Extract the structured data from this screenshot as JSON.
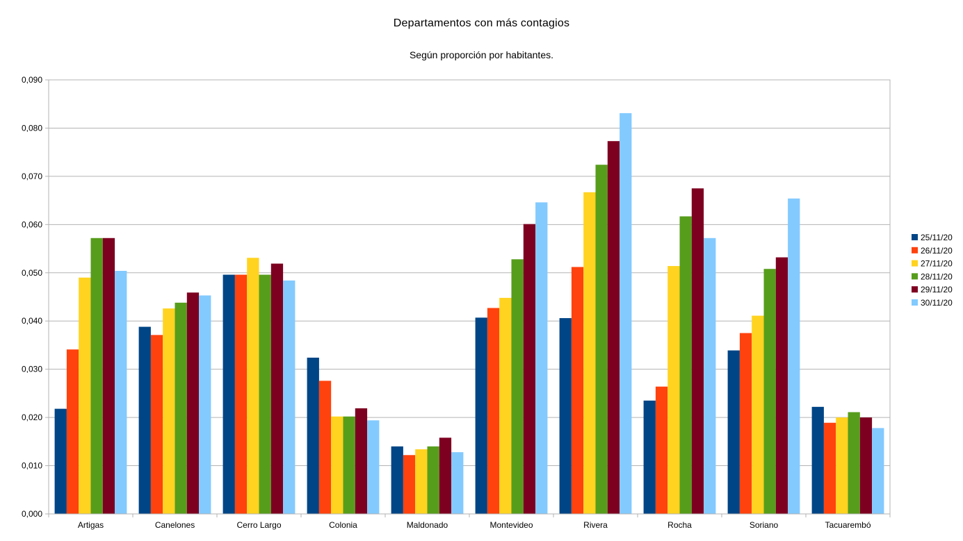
{
  "chart_data": {
    "type": "bar",
    "title": "Departamentos con más contagios",
    "subtitle": "Según proporción por habitantes.",
    "xlabel": "",
    "ylabel": "",
    "ylim": [
      0,
      0.09
    ],
    "y_ticks": [
      {
        "value": 0.0,
        "label": "0,000"
      },
      {
        "value": 0.01,
        "label": "0,010"
      },
      {
        "value": 0.02,
        "label": "0,020"
      },
      {
        "value": 0.03,
        "label": "0,030"
      },
      {
        "value": 0.04,
        "label": "0,040"
      },
      {
        "value": 0.05,
        "label": "0,050"
      },
      {
        "value": 0.06,
        "label": "0,060"
      },
      {
        "value": 0.07,
        "label": "0,070"
      },
      {
        "value": 0.08,
        "label": "0,080"
      },
      {
        "value": 0.09,
        "label": "0,090"
      }
    ],
    "grid": true,
    "legend_position": "right",
    "categories": [
      "Artigas",
      "Canelones",
      "Cerro Largo",
      "Colonia",
      "Maldonado",
      "Montevideo",
      "Rivera",
      "Rocha",
      "Soriano",
      "Tacuarembó"
    ],
    "series": [
      {
        "name": "25/11/20",
        "color": "#004586",
        "values": [
          0.0218,
          0.0388,
          0.0496,
          0.0324,
          0.014,
          0.0407,
          0.0406,
          0.0235,
          0.0339,
          0.0222
        ]
      },
      {
        "name": "26/11/20",
        "color": "#ff420e",
        "values": [
          0.0341,
          0.0371,
          0.0496,
          0.0276,
          0.0122,
          0.0427,
          0.0512,
          0.0264,
          0.0375,
          0.0189
        ]
      },
      {
        "name": "27/11/20",
        "color": "#ffd320",
        "values": [
          0.049,
          0.0426,
          0.0531,
          0.0202,
          0.0134,
          0.0448,
          0.0667,
          0.0514,
          0.0411,
          0.02
        ]
      },
      {
        "name": "28/11/20",
        "color": "#579d1c",
        "values": [
          0.0572,
          0.0438,
          0.0496,
          0.0202,
          0.014,
          0.0528,
          0.0724,
          0.0617,
          0.0508,
          0.0211
        ]
      },
      {
        "name": "29/11/20",
        "color": "#7e0021",
        "values": [
          0.0572,
          0.0459,
          0.0519,
          0.0219,
          0.0158,
          0.0601,
          0.0773,
          0.0675,
          0.0532,
          0.02
        ]
      },
      {
        "name": "30/11/20",
        "color": "#83caff",
        "values": [
          0.0504,
          0.0453,
          0.0484,
          0.0194,
          0.0128,
          0.0646,
          0.0831,
          0.0572,
          0.0654,
          0.0178
        ]
      }
    ]
  }
}
